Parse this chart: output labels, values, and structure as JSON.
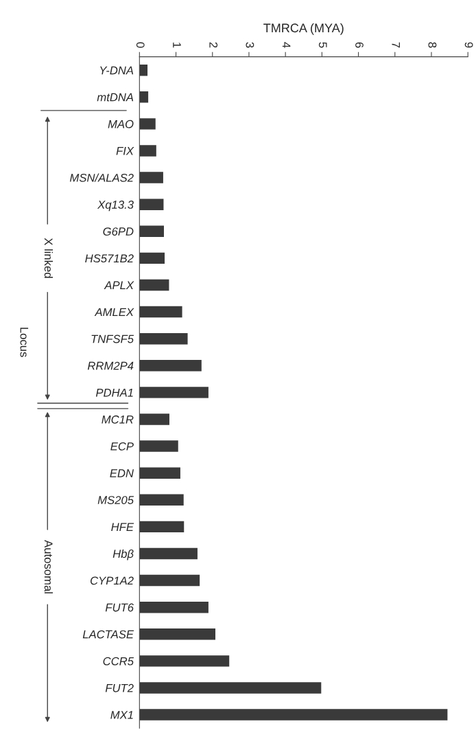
{
  "chart_data": {
    "type": "bar",
    "orientation": "horizontal",
    "xlabel": "TMRCA (MYA)",
    "ylabel": "Locus",
    "categories": [
      "Y-DNA",
      "mtDNA",
      "MAO",
      "FIX",
      "MSN/ALAS2",
      "Xq13.3",
      "G6PD",
      "HS571B2",
      "APLX",
      "AMLEX",
      "TNFSF5",
      "RRM2P4",
      "PDHA1",
      "MC1R",
      "ECP",
      "EDN",
      "MS205",
      "HFE",
      "Hbβ",
      "CYP1A2",
      "FUT6",
      "LACTASE",
      "CCR5",
      "FUT2",
      "MX1"
    ],
    "values": [
      0.22,
      0.24,
      0.44,
      0.46,
      0.65,
      0.66,
      0.67,
      0.69,
      0.81,
      1.17,
      1.32,
      1.7,
      1.89,
      0.82,
      1.06,
      1.12,
      1.21,
      1.22,
      1.59,
      1.65,
      1.89,
      2.08,
      2.46,
      4.98,
      8.44
    ],
    "color": "#3a3a3a",
    "xlim": [
      0,
      9
    ],
    "xticks": [
      0,
      1,
      2,
      3,
      4,
      5,
      6,
      7,
      8,
      9
    ],
    "annotations": [
      "X linked",
      "Autosomal"
    ]
  }
}
